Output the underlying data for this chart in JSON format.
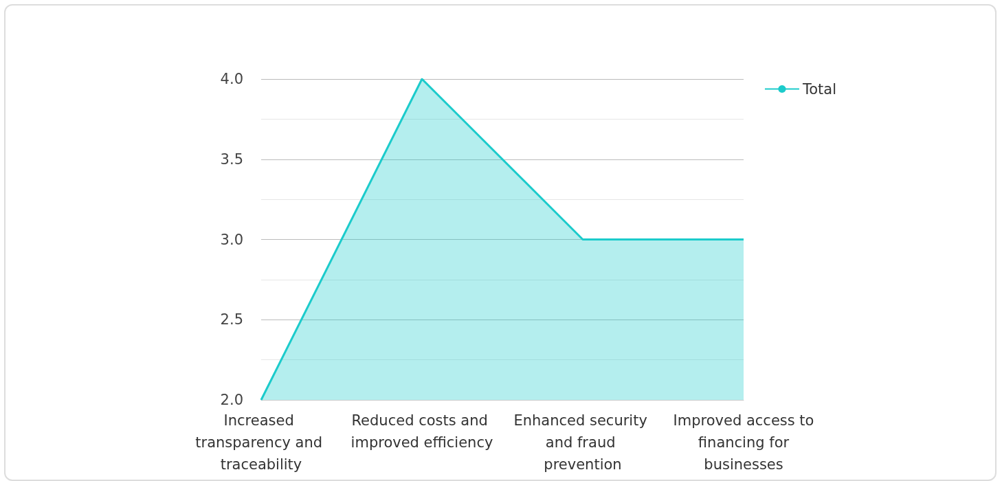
{
  "chart_data": {
    "type": "area",
    "categories": [
      "Increased transparency and traceability",
      "Reduced costs and improved efficiency",
      "Enhanced security and fraud prevention",
      "Improved access to financing for businesses"
    ],
    "series": [
      {
        "name": "Total",
        "color": "#1ccbcb",
        "values": [
          2,
          4,
          3,
          3
        ]
      }
    ],
    "ylim": [
      2,
      4
    ],
    "yticks": [
      {
        "value": 2,
        "label": "2.0"
      },
      {
        "value": 2.5,
        "label": "2.5"
      },
      {
        "value": 3,
        "label": "3.0"
      },
      {
        "value": 3.5,
        "label": "3.5"
      },
      {
        "value": 4,
        "label": "4.0"
      }
    ],
    "grid": "y",
    "legend": "top right"
  }
}
